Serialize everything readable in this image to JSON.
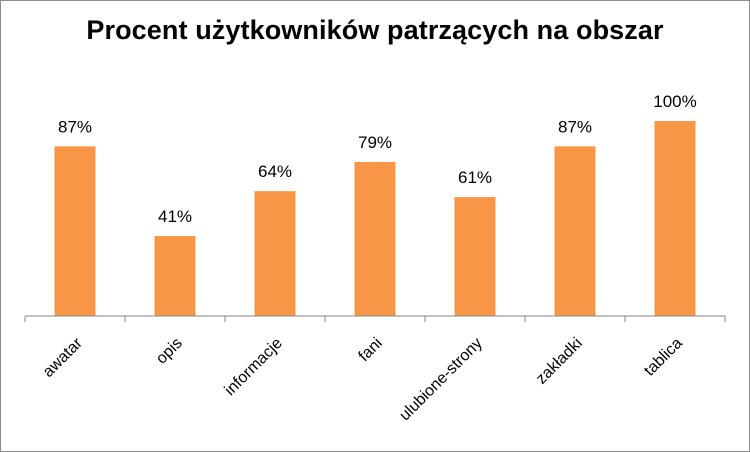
{
  "chart_data": {
    "type": "bar",
    "title": "Procent użytkowników patrzących na obszar",
    "categories": [
      "awatar",
      "opis",
      "informacje",
      "fani",
      "ulubione-strony",
      "zakładki",
      "tablica"
    ],
    "values": [
      87,
      41,
      64,
      79,
      61,
      87,
      100
    ],
    "value_labels": [
      "87%",
      "41%",
      "64%",
      "79%",
      "61%",
      "87%",
      "100%"
    ],
    "ylim": [
      0,
      100
    ],
    "bar_color": "#f79646",
    "axis_color": "#868686",
    "grid": false,
    "legend": "none",
    "xlabel": "",
    "ylabel": ""
  }
}
